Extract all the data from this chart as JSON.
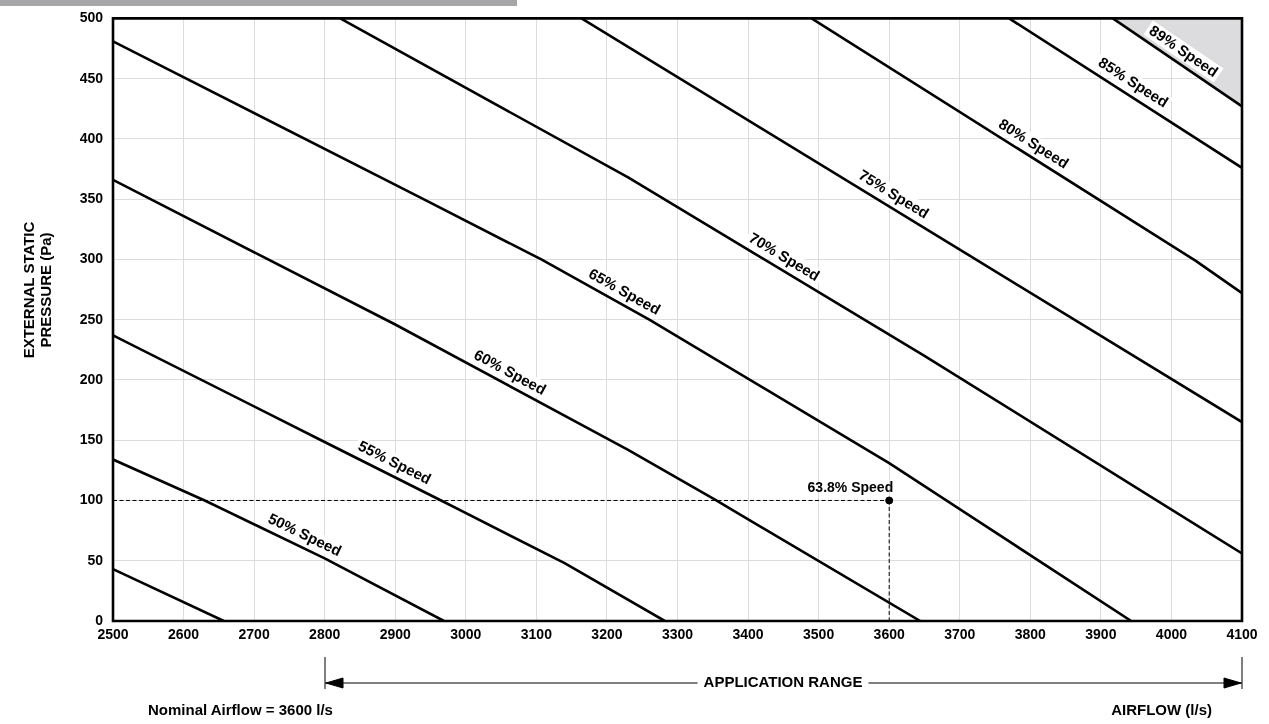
{
  "chart_data": {
    "type": "line",
    "xlabel": "AIRFLOW (l/s)",
    "ylabel": "EXTERNAL STATIC\nPRESSURE (Pa)",
    "xlim": [
      2500,
      4100
    ],
    "xticks": [
      2500,
      2600,
      2700,
      2800,
      2900,
      3000,
      3100,
      3200,
      3300,
      3400,
      3500,
      3600,
      3700,
      3800,
      3900,
      4000,
      4100
    ],
    "ylim": [
      0,
      500
    ],
    "yticks": [
      0,
      50,
      100,
      150,
      200,
      250,
      300,
      350,
      400,
      450,
      500
    ],
    "grid": true,
    "marker": "none",
    "line_style": "solid",
    "series": [
      {
        "x": [
          2500,
          2657
        ],
        "values": [
          43,
          0
        ],
        "color": "#000000"
      },
      {
        "x": [
          2500,
          2630,
          2800,
          2969
        ],
        "values": [
          134,
          100,
          52,
          0
        ],
        "color": "#000000"
      },
      {
        "x": [
          2500,
          2795,
          2965,
          3140,
          3282
        ],
        "values": [
          237,
          150,
          100,
          48,
          0
        ],
        "color": "#000000"
      },
      {
        "x": [
          2500,
          2900,
          3230,
          3355,
          3644
        ],
        "values": [
          366,
          246,
          142,
          100,
          0
        ],
        "color": "#000000"
      },
      {
        "x": [
          2500,
          2940,
          3107,
          3260,
          3600,
          3943
        ],
        "values": [
          481,
          350,
          300,
          250,
          131,
          0
        ],
        "color": "#000000"
      },
      {
        "x": [
          2822,
          3230,
          3650,
          4100
        ],
        "values": [
          500,
          368,
          220,
          56
        ],
        "color": "#000000"
      },
      {
        "x": [
          3164,
          4100
        ],
        "values": [
          500,
          165
        ],
        "color": "#000000"
      },
      {
        "x": [
          3490,
          4034,
          4100
        ],
        "values": [
          500,
          299,
          272
        ],
        "color": "#000000"
      },
      {
        "x": [
          3770,
          4100
        ],
        "values": [
          500,
          376
        ],
        "color": "#000000"
      },
      {
        "x": [
          3917,
          4100
        ],
        "values": [
          500,
          427
        ],
        "color": "#000000"
      },
      {
        "x": [
          2500,
          3600
        ],
        "values": [
          100,
          100
        ],
        "color": "#000000",
        "line_style": "dashed"
      },
      {
        "x": [
          3600,
          3600
        ],
        "values": [
          100,
          0
        ],
        "color": "#000000",
        "line_style": "dashed"
      },
      {
        "type": "scatter",
        "name": "63.8% Speed",
        "x": [
          3600
        ],
        "values": [
          100
        ],
        "color": "#000000",
        "marker": "circle"
      }
    ],
    "annotations": [
      {
        "text": "50% Speed",
        "x": 2764,
        "y": 62
      },
      {
        "text": "55% Speed",
        "x": 2891,
        "y": 122
      },
      {
        "text": "60% Speed",
        "x": 3054,
        "y": 197
      },
      {
        "text": "65% Speed",
        "x": 3216,
        "y": 264
      },
      {
        "text": "70% Speed",
        "x": 3442,
        "y": 293
      },
      {
        "text": "75% Speed",
        "x": 3597,
        "y": 345
      },
      {
        "text": "80% Speed",
        "x": 3795,
        "y": 387
      },
      {
        "text": "85% Speed",
        "x": 3936,
        "y": 438
      },
      {
        "text": "89% Speed",
        "x": 4007,
        "y": 464
      },
      "Nominal Airflow = 3600 l/s",
      "APPLICATION RANGE"
    ]
  }
}
